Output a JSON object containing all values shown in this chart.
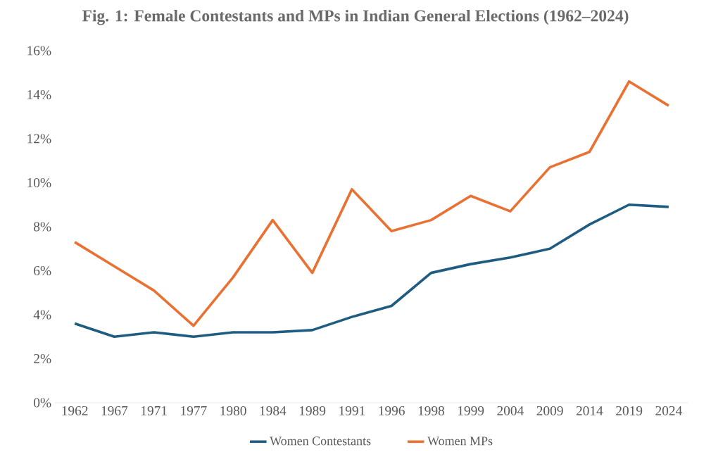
{
  "chart_data": {
    "type": "line",
    "title": "Fig. 1: Female Contestants and MPs in Indian General Elections (1962–2024)",
    "categories": [
      "1962",
      "1967",
      "1971",
      "1977",
      "1980",
      "1984",
      "1989",
      "1991",
      "1996",
      "1998",
      "1999",
      "2004",
      "2009",
      "2014",
      "2019",
      "2024"
    ],
    "series": [
      {
        "name": "Women Contestants",
        "color": "#1f5c82",
        "values": [
          3.6,
          3.0,
          3.2,
          3.0,
          3.2,
          3.2,
          3.3,
          3.9,
          4.4,
          5.9,
          6.3,
          6.6,
          7.0,
          8.1,
          9.0,
          8.9
        ]
      },
      {
        "name": "Women MPs",
        "color": "#e97132",
        "values": [
          7.3,
          6.2,
          5.1,
          3.5,
          5.7,
          8.3,
          5.9,
          9.7,
          7.8,
          8.3,
          9.4,
          8.7,
          10.7,
          11.4,
          14.6,
          13.5
        ]
      }
    ],
    "ylim": [
      0,
      16
    ],
    "yticks": [
      {
        "value": 0,
        "label": "0%"
      },
      {
        "value": 2,
        "label": "2%"
      },
      {
        "value": 4,
        "label": "4%"
      },
      {
        "value": 6,
        "label": "6%"
      },
      {
        "value": 8,
        "label": "8%"
      },
      {
        "value": 10,
        "label": "10%"
      },
      {
        "value": 12,
        "label": "12%"
      },
      {
        "value": 14,
        "label": "14%"
      },
      {
        "value": 16,
        "label": "16%"
      }
    ],
    "grid": false,
    "legend": "bottom",
    "marker": "none",
    "line_style": "solid"
  }
}
